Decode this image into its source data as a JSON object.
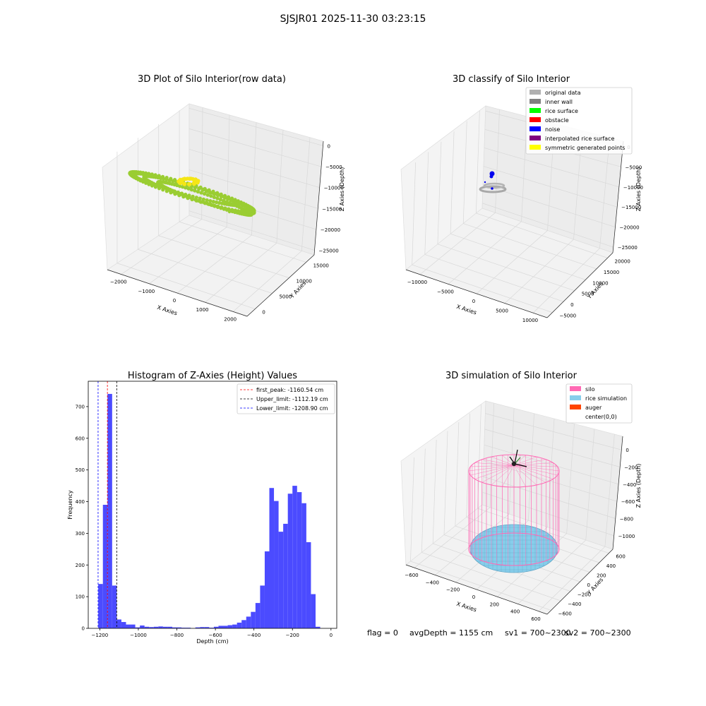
{
  "figure": {
    "suptitle": "SJSJR01 2025-11-30 03:23:15",
    "status": {
      "flag": "flag = 0",
      "avg_depth": "avgDepth = 1155 cm",
      "sv1": "sv1 = 700~2300",
      "sv2": "sv2 = 700~2300"
    }
  },
  "chart_data": [
    {
      "type": "scatter",
      "projection": "3d",
      "title": "3D Plot of Silo Interior(row data)",
      "xlabel": "X Axies",
      "ylabel": "Y Axies",
      "zlabel": "Z Axies (Depth)",
      "x_ticks": [
        "−2000",
        "−1000",
        "0",
        "1000",
        "2000"
      ],
      "y_ticks": [
        "0",
        "5000",
        "10000",
        "15000"
      ],
      "z_ticks": [
        "0",
        "−5000",
        "−10000",
        "−15000",
        "−20000",
        "−25000"
      ],
      "grid": true,
      "series": [
        {
          "color": "#9acd32",
          "description_shape": "elongated rings"
        },
        {
          "color": "#f5e616",
          "description_shape": "small cluster"
        }
      ]
    },
    {
      "type": "scatter",
      "projection": "3d",
      "title": "3D classify of Silo Interior",
      "xlabel": "X Axies",
      "ylabel": "Y Axies",
      "zlabel": "Z Axies (Depth)",
      "x_ticks": [
        "−10000",
        "−5000",
        "0",
        "5000",
        "10000"
      ],
      "y_ticks": [
        "−5000",
        "0",
        "5000",
        "10000",
        "15000",
        "20000"
      ],
      "z_ticks": [
        "0",
        "−5000",
        "−10000",
        "−15000",
        "−20000",
        "−25000"
      ],
      "grid": true,
      "legend_position": "top-right",
      "legend": [
        {
          "name": "original data",
          "color": "#b0b0b0"
        },
        {
          "name": "inner wall",
          "color": "#808080"
        },
        {
          "name": "rice surface",
          "color": "#00ff00"
        },
        {
          "name": "obstacle",
          "color": "#ff0000"
        },
        {
          "name": "noise",
          "color": "#0000ff"
        },
        {
          "name": "interpolated rice surface",
          "color": "#800080"
        },
        {
          "name": "symmetric generated points",
          "color": "#ffff00"
        }
      ]
    },
    {
      "type": "bar",
      "title": "Histogram of Z-Axies (Height) Values",
      "xlabel": "Depth (cm)",
      "ylabel": "Frequency",
      "xlim": [
        -1260,
        30
      ],
      "ylim": [
        0,
        780
      ],
      "x_ticks": [
        -1200,
        -1000,
        -800,
        -600,
        -400,
        -200,
        0
      ],
      "y_ticks": [
        0,
        100,
        200,
        300,
        400,
        500,
        600,
        700
      ],
      "bin_width": 24,
      "bar_color": "#4b4bff",
      "bins_start": [
        -1208,
        -1184,
        -1160,
        -1136,
        -1112,
        -1088,
        -1064,
        -1040,
        -1016,
        -992,
        -968,
        -944,
        -920,
        -896,
        -872,
        -848,
        -824,
        -800,
        -776,
        -752,
        -728,
        -704,
        -680,
        -656,
        -632,
        -608,
        -584,
        -560,
        -536,
        -512,
        -488,
        -464,
        -440,
        -416,
        -392,
        -368,
        -344,
        -320,
        -296,
        -272,
        -248,
        -224,
        -200,
        -176,
        -152,
        -128,
        -104,
        -80,
        -56,
        -32,
        -8
      ],
      "values": [
        140,
        390,
        740,
        135,
        28,
        20,
        12,
        12,
        3,
        9,
        5,
        4,
        5,
        6,
        5,
        5,
        3,
        3,
        2,
        2,
        0,
        3,
        4,
        4,
        2,
        5,
        8,
        8,
        10,
        12,
        18,
        26,
        37,
        52,
        80,
        135,
        243,
        443,
        402,
        305,
        330,
        425,
        450,
        430,
        395,
        272,
        108,
        5,
        0,
        0,
        0
      ],
      "vlines": [
        {
          "label": "first_peak: -1160.54 cm",
          "x": -1160.54,
          "color": "#ff0000"
        },
        {
          "label": "Upper_limit: -1112.19 cm",
          "x": -1112.19,
          "color": "#000000"
        },
        {
          "label": "Lower_limit: -1208.90 cm",
          "x": -1208.9,
          "color": "#0000ff"
        }
      ],
      "legend_position": "top-right"
    },
    {
      "type": "scatter",
      "projection": "3d",
      "title": "3D simulation of Silo Interior",
      "xlabel": "X Axies",
      "ylabel": "Y Axies",
      "zlabel": "Z Axies (Depth)",
      "x_ticks": [
        "−600",
        "−400",
        "−200",
        "0",
        "200",
        "400",
        "600"
      ],
      "y_ticks": [
        "−600",
        "−400",
        "−200",
        "0",
        "200",
        "400",
        "600"
      ],
      "z_ticks": [
        "0",
        "−200",
        "−400",
        "−600",
        "−800",
        "−1000"
      ],
      "grid": true,
      "legend_position": "top-right",
      "legend": [
        {
          "name": "silo",
          "color": "#ff69b4"
        },
        {
          "name": "rice simulation",
          "color": "#87ceeb"
        },
        {
          "name": "auger",
          "color": "#ff4500"
        },
        {
          "name": "center(0,0)",
          "color": "#ffffff"
        }
      ]
    }
  ]
}
